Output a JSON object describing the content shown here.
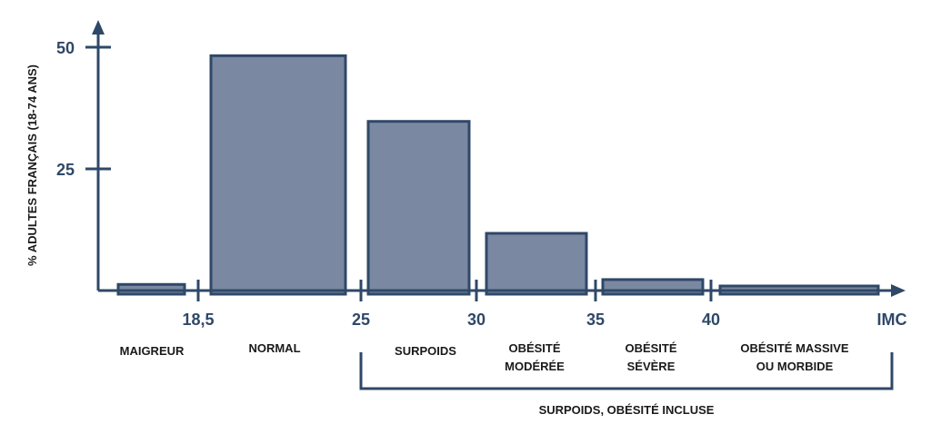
{
  "chart_data": {
    "type": "bar",
    "ylabel": "% ADULTES FRANÇAIS (18-74 ANS)",
    "xlabel": "IMC",
    "ylim": [
      0,
      50
    ],
    "yticks": [
      "25",
      "50"
    ],
    "xticks": [
      "18,5",
      "25",
      "30",
      "35",
      "40"
    ],
    "categories": [
      {
        "label": "MAIGREUR",
        "from": 15.5,
        "to": 18.5
      },
      {
        "label": "NORMAL",
        "from": 18.5,
        "to": 25
      },
      {
        "label": "SURPOIDS",
        "from": 25,
        "to": 30
      },
      {
        "label": "OBÉSITÉ\nMODÉRÉE",
        "from": 30,
        "to": 35
      },
      {
        "label": "OBÉSITÉ\nSÉVÈRE",
        "from": 35,
        "to": 40
      },
      {
        "label": "OBÉSITÉ MASSIVE\nOU MORBIDE",
        "from": 40,
        "to": 48
      }
    ],
    "values": [
      2,
      49,
      35.5,
      12.5,
      3,
      1.5
    ],
    "group": {
      "label": "SURPOIDS, OBÉSITÉ INCLUSE",
      "from": 25,
      "to": 48
    },
    "grid": false,
    "colors": {
      "bar_fill": "#7b88a1",
      "bar_stroke": "#2f4868",
      "axis": "#2f4868"
    }
  }
}
